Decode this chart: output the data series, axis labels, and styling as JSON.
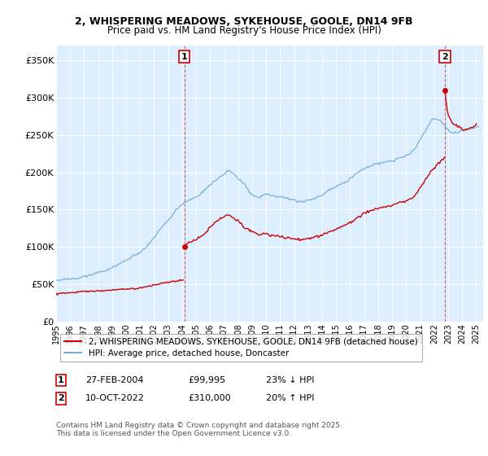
{
  "title_line1": "2, WHISPERING MEADOWS, SYKEHOUSE, GOOLE, DN14 9FB",
  "title_line2": "Price paid vs. HM Land Registry's House Price Index (HPI)",
  "bg_color": "#ddeeff",
  "red_color": "#cc0000",
  "blue_color": "#7aaed6",
  "ylim": [
    0,
    370000
  ],
  "yticks": [
    0,
    50000,
    100000,
    150000,
    200000,
    250000,
    300000,
    350000
  ],
  "ytick_labels": [
    "£0",
    "£50K",
    "£100K",
    "£150K",
    "£200K",
    "£250K",
    "£300K",
    "£350K"
  ],
  "legend_label_red": "2, WHISPERING MEADOWS, SYKEHOUSE, GOOLE, DN14 9FB (detached house)",
  "legend_label_blue": "HPI: Average price, detached house, Doncaster",
  "annotation1_date": "27-FEB-2004",
  "annotation1_price": "£99,995",
  "annotation1_hpi": "23% ↓ HPI",
  "annotation2_date": "10-OCT-2022",
  "annotation2_price": "£310,000",
  "annotation2_hpi": "20% ↑ HPI",
  "footer": "Contains HM Land Registry data © Crown copyright and database right 2025.\nThis data is licensed under the Open Government Licence v3.0.",
  "sale1_x": 2004.15,
  "sale1_y": 99995,
  "sale2_x": 2022.77,
  "sale2_y": 310000,
  "xlim_left": 1995.0,
  "xlim_right": 2025.5
}
